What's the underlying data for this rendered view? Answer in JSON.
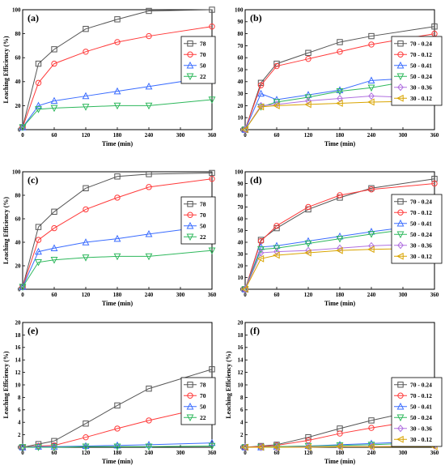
{
  "chart_data": [
    {
      "panel": "(a)",
      "type": "line",
      "xlabel": "Time (min)",
      "ylabel": "Leaching Efficiency (%)",
      "xlim": [
        0,
        360
      ],
      "xticks": [
        0,
        60,
        120,
        180,
        240,
        300,
        360
      ],
      "ylim": [
        0,
        100
      ],
      "yticks": [
        0,
        20,
        40,
        60,
        80,
        100
      ],
      "legend": "right",
      "x": [
        0,
        30,
        60,
        120,
        180,
        240,
        360
      ],
      "series": [
        {
          "name": "78",
          "color": "#555555",
          "marker": "square",
          "values": [
            2,
            55,
            67,
            84,
            92,
            99,
            100
          ]
        },
        {
          "name": "70",
          "color": "#ff3a3a",
          "marker": "circle",
          "values": [
            2,
            39,
            55,
            65,
            73,
            78,
            86
          ]
        },
        {
          "name": "50",
          "color": "#3a6cff",
          "marker": "triangle",
          "values": [
            2,
            20,
            24,
            28,
            32,
            36,
            44
          ]
        },
        {
          "name": "22",
          "color": "#2eb85c",
          "marker": "tri-down",
          "values": [
            2,
            17,
            18,
            19,
            20,
            20,
            25
          ]
        }
      ]
    },
    {
      "panel": "(b)",
      "type": "line",
      "xlabel": "Time (min)",
      "ylabel": "",
      "xlim": [
        0,
        360
      ],
      "xticks": [
        0,
        60,
        120,
        180,
        240,
        300,
        360
      ],
      "ylim": [
        0,
        100
      ],
      "yticks": [
        0,
        10,
        20,
        30,
        40,
        50,
        60,
        70,
        80,
        90,
        100
      ],
      "legend": "right",
      "x": [
        0,
        30,
        60,
        120,
        180,
        240,
        360
      ],
      "series": [
        {
          "name": "70 - 0.24",
          "color": "#555555",
          "marker": "square",
          "values": [
            0,
            39,
            55,
            64,
            73,
            78,
            86
          ]
        },
        {
          "name": "70 - 0.12",
          "color": "#ff3a3a",
          "marker": "circle",
          "values": [
            0,
            37,
            53,
            59,
            65,
            71,
            80
          ]
        },
        {
          "name": "50 - 0.41",
          "color": "#3a6cff",
          "marker": "triangle",
          "values": [
            0,
            30,
            25,
            29,
            33,
            41,
            44
          ]
        },
        {
          "name": "50 - 0.24",
          "color": "#2eb85c",
          "marker": "tri-down",
          "values": [
            0,
            19,
            23,
            27,
            32,
            35,
            44
          ]
        },
        {
          "name": "30 - 0.36",
          "color": "#b070e0",
          "marker": "diamond",
          "values": [
            0,
            20,
            21,
            24,
            26,
            28,
            26
          ]
        },
        {
          "name": "30 - 0.12",
          "color": "#d9a400",
          "marker": "tri-left",
          "values": [
            0,
            19,
            20,
            21,
            22,
            23,
            24
          ]
        }
      ]
    },
    {
      "panel": "(c)",
      "type": "line",
      "xlabel": "Time (min)",
      "ylabel": "Leaching Efficiency (%)",
      "xlim": [
        0,
        360
      ],
      "xticks": [
        0,
        60,
        120,
        180,
        240,
        300,
        360
      ],
      "ylim": [
        0,
        100
      ],
      "yticks": [
        0,
        20,
        40,
        60,
        80,
        100
      ],
      "legend": "right",
      "x": [
        0,
        30,
        60,
        120,
        180,
        240,
        360
      ],
      "series": [
        {
          "name": "78",
          "color": "#555555",
          "marker": "square",
          "values": [
            2,
            53,
            66,
            86,
            96,
            98,
            99
          ]
        },
        {
          "name": "70",
          "color": "#ff3a3a",
          "marker": "circle",
          "values": [
            2,
            42,
            52,
            68,
            78,
            87,
            94
          ]
        },
        {
          "name": "50",
          "color": "#3a6cff",
          "marker": "triangle",
          "values": [
            2,
            32,
            35,
            40,
            43,
            47,
            54
          ]
        },
        {
          "name": "22",
          "color": "#2eb85c",
          "marker": "tri-down",
          "values": [
            2,
            23,
            25,
            27,
            28,
            28,
            33
          ]
        }
      ]
    },
    {
      "panel": "(d)",
      "type": "line",
      "xlabel": "Time (min)",
      "ylabel": "",
      "xlim": [
        0,
        360
      ],
      "xticks": [
        0,
        60,
        120,
        180,
        240,
        300,
        360
      ],
      "ylim": [
        0,
        100
      ],
      "yticks": [
        0,
        10,
        20,
        30,
        40,
        50,
        60,
        70,
        80,
        90,
        100
      ],
      "legend": "right",
      "x": [
        0,
        30,
        60,
        120,
        180,
        240,
        360
      ],
      "series": [
        {
          "name": "70 - 0.24",
          "color": "#555555",
          "marker": "square",
          "values": [
            0,
            42,
            52,
            68,
            78,
            86,
            94
          ]
        },
        {
          "name": "70 - 0.12",
          "color": "#ff3a3a",
          "marker": "circle",
          "values": [
            0,
            41,
            54,
            70,
            80,
            85,
            90
          ]
        },
        {
          "name": "50 - 0.41",
          "color": "#3a6cff",
          "marker": "triangle",
          "values": [
            0,
            36,
            37,
            41,
            45,
            49,
            56
          ]
        },
        {
          "name": "50 - 0.24",
          "color": "#2eb85c",
          "marker": "tri-down",
          "values": [
            0,
            34,
            35,
            39,
            43,
            47,
            54
          ]
        },
        {
          "name": "30 - 0.36",
          "color": "#b070e0",
          "marker": "diamond",
          "values": [
            0,
            31,
            32,
            33,
            35,
            37,
            39
          ]
        },
        {
          "name": "30 - 0.12",
          "color": "#d9a400",
          "marker": "tri-left",
          "values": [
            0,
            26,
            29,
            31,
            33,
            34,
            35
          ]
        }
      ]
    },
    {
      "panel": "(e)",
      "type": "line",
      "xlabel": "Time (min)",
      "ylabel": "Leaching Efficiency (%)",
      "xlim": [
        0,
        360
      ],
      "xticks": [
        0,
        60,
        120,
        180,
        240,
        300,
        360
      ],
      "ylim": [
        0,
        20
      ],
      "yticks": [
        0,
        2,
        4,
        6,
        8,
        10,
        12,
        14,
        16,
        18,
        20
      ],
      "legend": "right",
      "x": [
        0,
        30,
        60,
        120,
        180,
        240,
        360
      ],
      "series": [
        {
          "name": "78",
          "color": "#555555",
          "marker": "square",
          "values": [
            0,
            0.5,
            1.0,
            3.8,
            6.7,
            9.4,
            12.5
          ]
        },
        {
          "name": "70",
          "color": "#ff3a3a",
          "marker": "circle",
          "values": [
            0,
            0.2,
            0.3,
            1.6,
            3.0,
            4.3,
            6.6
          ]
        },
        {
          "name": "50",
          "color": "#3a6cff",
          "marker": "triangle",
          "values": [
            0,
            0.1,
            0.1,
            0.2,
            0.3,
            0.4,
            0.7
          ]
        },
        {
          "name": "22",
          "color": "#2eb85c",
          "marker": "tri-down",
          "values": [
            0,
            0.0,
            0.0,
            0.1,
            0.1,
            0.1,
            0.2
          ]
        }
      ]
    },
    {
      "panel": "(f)",
      "type": "line",
      "xlabel": "Time (min)",
      "ylabel": "Leaching Efficiency (%)",
      "xlim": [
        0,
        360
      ],
      "xticks": [
        0,
        60,
        120,
        180,
        240,
        300,
        360
      ],
      "ylim": [
        0,
        20
      ],
      "yticks": [
        0,
        2,
        4,
        6,
        8,
        10,
        12,
        14,
        16,
        18,
        20
      ],
      "legend": "right",
      "x": [
        0,
        30,
        60,
        120,
        180,
        240,
        360
      ],
      "series": [
        {
          "name": "70 - 0.24",
          "color": "#555555",
          "marker": "square",
          "values": [
            0,
            0.2,
            0.4,
            1.6,
            3.0,
            4.3,
            6.5
          ]
        },
        {
          "name": "70 - 0.12",
          "color": "#ff3a3a",
          "marker": "circle",
          "values": [
            0,
            0.1,
            0.3,
            1.1,
            2.2,
            3.1,
            4.7
          ]
        },
        {
          "name": "50 - 0.41",
          "color": "#3a6cff",
          "marker": "triangle",
          "values": [
            0,
            0.0,
            0.1,
            0.2,
            0.4,
            0.6,
            1.0
          ]
        },
        {
          "name": "50 - 0.24",
          "color": "#2eb85c",
          "marker": "tri-down",
          "values": [
            0,
            0.0,
            0.1,
            0.2,
            0.3,
            0.4,
            0.8
          ]
        },
        {
          "name": "30 - 0.36",
          "color": "#b070e0",
          "marker": "diamond",
          "values": [
            0,
            0.0,
            0.0,
            0.1,
            0.1,
            0.1,
            0.2
          ]
        },
        {
          "name": "30 - 0.12",
          "color": "#d9a400",
          "marker": "tri-left",
          "values": [
            0,
            0.0,
            0.0,
            0.0,
            0.1,
            0.1,
            0.1
          ]
        }
      ]
    }
  ]
}
